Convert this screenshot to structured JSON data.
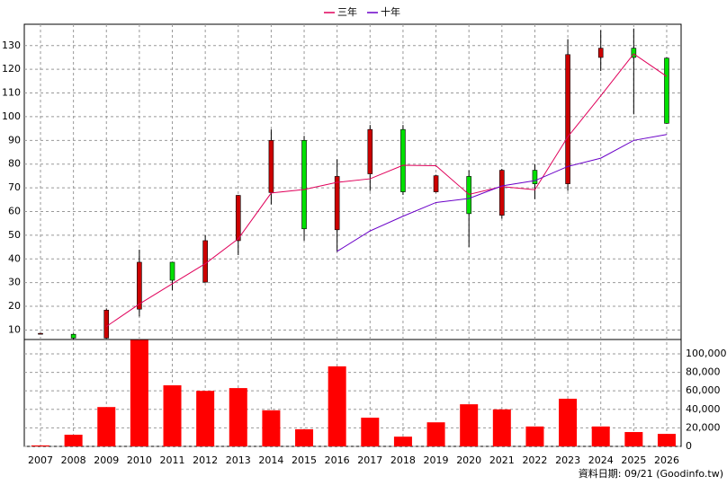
{
  "chart_data": {
    "type": "candlestick",
    "categories": [
      "2007",
      "2008",
      "2009",
      "2010",
      "2011",
      "2012",
      "2013",
      "2014",
      "2015",
      "2016",
      "2017",
      "2018",
      "2019",
      "2020",
      "2021",
      "2022",
      "2023",
      "2024",
      "2025",
      "2026"
    ],
    "open": [
      8.4,
      8.2,
      6.6,
      18.8,
      38.6,
      30.2,
      47.7,
      68,
      90,
      52.3,
      75.9,
      94.6,
      68.3,
      74.8,
      58.4,
      77.4,
      71.7,
      125,
      128.9,
      124.7
    ],
    "high": [
      8.7,
      8.5,
      19.1,
      43.9,
      38.6,
      50,
      67,
      94.6,
      91.9,
      82,
      96.5,
      96.5,
      75.5,
      77.4,
      78,
      80,
      132.7,
      136.5,
      137.2,
      125
    ],
    "low": [
      8.3,
      5.8,
      6.2,
      15.7,
      26.8,
      30,
      41.6,
      63,
      47.7,
      43,
      68.7,
      67,
      68,
      45,
      57,
      65.2,
      68.7,
      119.3,
      101,
      97
    ],
    "close": [
      8.6,
      6.6,
      18.4,
      38.6,
      31,
      47.7,
      66.8,
      90,
      52.7,
      74.8,
      94.6,
      68.3,
      75.1,
      59.1,
      77.4,
      71.7,
      126.2,
      128.9,
      125,
      97.2
    ],
    "up_color": "#cc0000",
    "down_color": "#00e000",
    "lines": [
      {
        "name": "三年",
        "color": "#e0005a",
        "values": [
          null,
          null,
          11.5,
          21,
          29.5,
          38,
          48.5,
          67.8,
          69.3,
          72.3,
          73.8,
          79.5,
          79.3,
          67.2,
          70.5,
          69.2,
          91.5,
          108.8,
          126.5,
          117
        ]
      },
      {
        "name": "十年",
        "color": "#6a00c8",
        "values": [
          null,
          null,
          null,
          null,
          null,
          null,
          null,
          null,
          null,
          43.2,
          51.8,
          58,
          63.8,
          65.5,
          70.8,
          73,
          79,
          82.5,
          90,
          92.5
        ]
      }
    ],
    "ylim": [
      6,
      139
    ],
    "yticks": [
      10,
      20,
      30,
      40,
      50,
      60,
      70,
      80,
      90,
      100,
      110,
      120,
      130
    ],
    "grid": true,
    "legend": "top",
    "volume": {
      "color": "#ff0000",
      "values": [
        1000,
        12600,
        42500,
        115000,
        66000,
        60000,
        63000,
        39000,
        18500,
        86500,
        31000,
        10500,
        26000,
        45500,
        40000,
        21500,
        51500,
        21500,
        15500,
        13500
      ],
      "ylim": [
        0,
        115500
      ],
      "yticks": [
        0,
        {
          "value": 20000,
          "label": "20,000"
        },
        {
          "value": 40000,
          "label": "40,000"
        },
        {
          "value": 60000,
          "label": "60,000"
        },
        {
          "value": 80000,
          "label": "80,000"
        },
        {
          "value": 100000,
          "label": "100,000"
        }
      ]
    },
    "source": "資料日期: 09/21  (Goodinfo.tw)"
  }
}
